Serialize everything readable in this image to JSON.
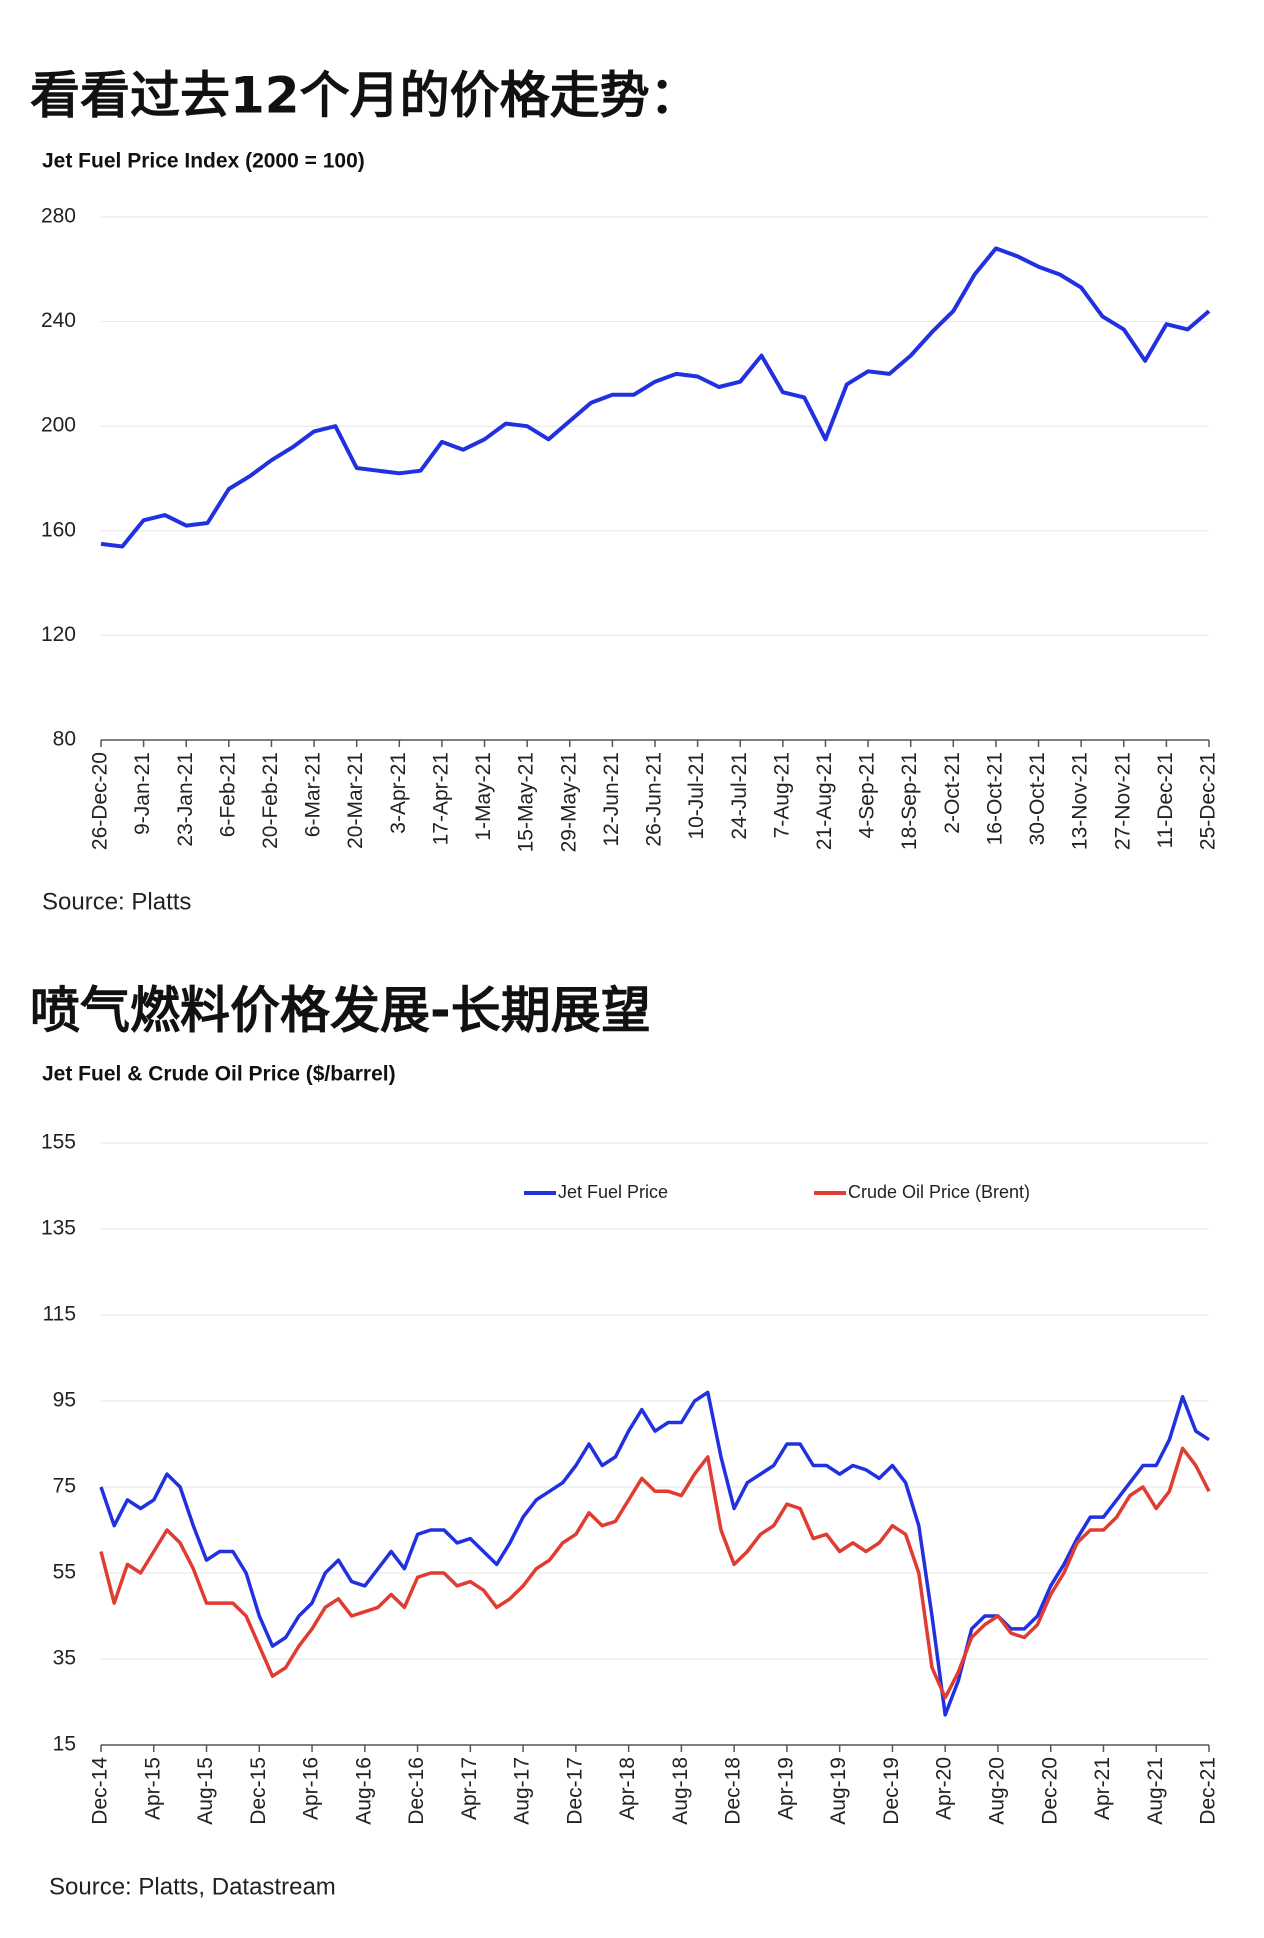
{
  "chart_data": [
    {
      "type": "line",
      "heading": "看看过去12个月的价格走势：",
      "title": "Jet Fuel Price Index (2000 = 100)",
      "source": "Source: Platts",
      "categories": [
        "26-Dec-20",
        null,
        "9-Jan-21",
        null,
        "23-Jan-21",
        null,
        "6-Feb-21",
        null,
        "20-Feb-21",
        null,
        "6-Mar-21",
        null,
        "20-Mar-21",
        null,
        "3-Apr-21",
        null,
        "17-Apr-21",
        null,
        "1-May-21",
        null,
        "15-May-21",
        null,
        "29-May-21",
        null,
        "12-Jun-21",
        null,
        "26-Jun-21",
        null,
        "10-Jul-21",
        null,
        "24-Jul-21",
        null,
        "7-Aug-21",
        null,
        "21-Aug-21",
        null,
        "4-Sep-21",
        null,
        "18-Sep-21",
        null,
        "2-Oct-21",
        null,
        "16-Oct-21",
        null,
        "30-Oct-21",
        null,
        "13-Nov-21",
        null,
        "27-Nov-21",
        null,
        "11-Dec-21",
        null,
        "25-Dec-21"
      ],
      "values": [
        155,
        154,
        164,
        166,
        162,
        163,
        176,
        181,
        187,
        192,
        198,
        200,
        184,
        183,
        182,
        183,
        194,
        191,
        195,
        201,
        200,
        195,
        202,
        209,
        212,
        212,
        217,
        220,
        219,
        215,
        217,
        227,
        213,
        211,
        195,
        216,
        221,
        220,
        227,
        236,
        244,
        258,
        268,
        265,
        261,
        258,
        253,
        242,
        237,
        225,
        239,
        237,
        244
      ],
      "color": "#2130e0",
      "ylim": [
        80,
        280
      ],
      "yticks": [
        80,
        120,
        160,
        200,
        240,
        280
      ],
      "grid": true
    },
    {
      "type": "line",
      "heading": "喷气燃料价格发展-长期展望",
      "title": "Jet Fuel & Crude Oil Price ($/barrel)",
      "source": "Source: Platts, Datastream",
      "categories": [
        "Dec-14",
        null,
        null,
        null,
        "Apr-15",
        null,
        null,
        null,
        "Aug-15",
        null,
        null,
        null,
        "Dec-15",
        null,
        null,
        null,
        "Apr-16",
        null,
        null,
        null,
        "Aug-16",
        null,
        null,
        null,
        "Dec-16",
        null,
        null,
        null,
        "Apr-17",
        null,
        null,
        null,
        "Aug-17",
        null,
        null,
        null,
        "Dec-17",
        null,
        null,
        null,
        "Apr-18",
        null,
        null,
        null,
        "Aug-18",
        null,
        null,
        null,
        "Dec-18",
        null,
        null,
        null,
        "Apr-19",
        null,
        null,
        null,
        "Aug-19",
        null,
        null,
        null,
        "Dec-19",
        null,
        null,
        null,
        "Apr-20",
        null,
        null,
        null,
        "Aug-20",
        null,
        null,
        null,
        "Dec-20",
        null,
        null,
        null,
        "Apr-21",
        null,
        null,
        null,
        "Aug-21",
        null,
        null,
        null,
        "Dec-21"
      ],
      "series": [
        {
          "name": "Jet Fuel Price",
          "color": "#2130e0",
          "values": [
            75,
            66,
            72,
            70,
            72,
            78,
            75,
            66,
            58,
            60,
            60,
            55,
            45,
            38,
            40,
            45,
            48,
            55,
            58,
            53,
            52,
            56,
            60,
            56,
            64,
            65,
            65,
            62,
            63,
            60,
            57,
            62,
            68,
            72,
            74,
            76,
            80,
            85,
            80,
            82,
            88,
            93,
            88,
            90,
            90,
            95,
            97,
            82,
            70,
            76,
            78,
            80,
            85,
            85,
            80,
            80,
            78,
            80,
            79,
            77,
            80,
            76,
            66,
            45,
            22,
            30,
            42,
            45,
            45,
            42,
            42,
            45,
            52,
            57,
            63,
            68,
            68,
            72,
            76,
            80,
            80,
            86,
            96,
            88,
            86
          ]
        },
        {
          "name": "Crude Oil Price (Brent)",
          "color": "#e03c31",
          "values": [
            60,
            48,
            57,
            55,
            60,
            65,
            62,
            56,
            48,
            48,
            48,
            45,
            38,
            31,
            33,
            38,
            42,
            47,
            49,
            45,
            46,
            47,
            50,
            47,
            54,
            55,
            55,
            52,
            53,
            51,
            47,
            49,
            52,
            56,
            58,
            62,
            64,
            69,
            66,
            67,
            72,
            77,
            74,
            74,
            73,
            78,
            82,
            65,
            57,
            60,
            64,
            66,
            71,
            70,
            63,
            64,
            60,
            62,
            60,
            62,
            66,
            64,
            55,
            33,
            26,
            32,
            40,
            43,
            45,
            41,
            40,
            43,
            50,
            55,
            62,
            65,
            65,
            68,
            73,
            75,
            70,
            74,
            84,
            80,
            74
          ]
        }
      ],
      "ylim": [
        15,
        155
      ],
      "yticks": [
        15,
        35,
        55,
        75,
        95,
        115,
        135,
        155
      ],
      "grid": true,
      "legend": "top"
    }
  ]
}
